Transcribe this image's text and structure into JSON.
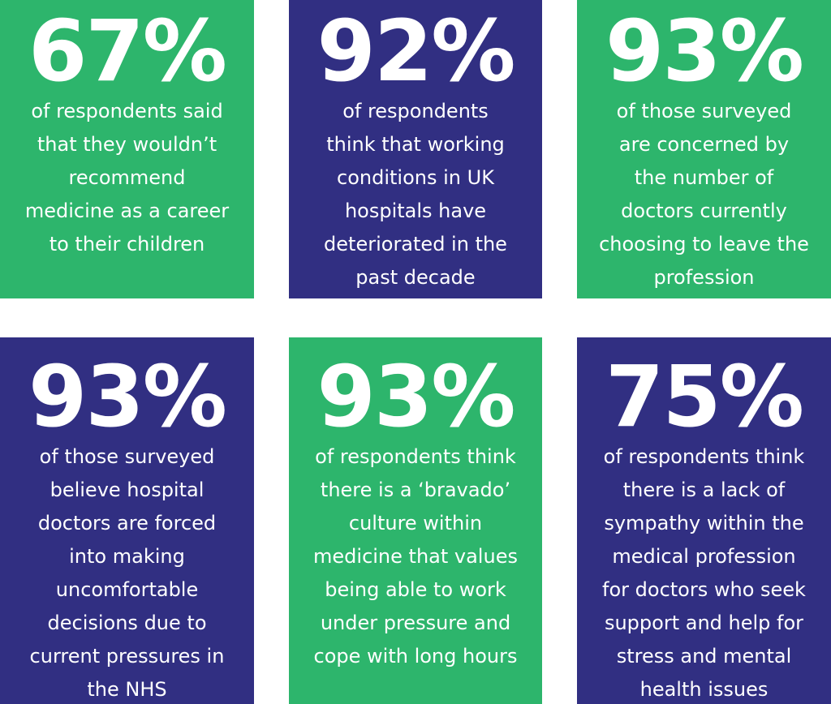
{
  "stats": [
    {
      "percent": "67%",
      "text": "of respondents said\nthat they wouldn’t\nrecommend\nmedicine as a career\nto their children",
      "color": "#2db56c"
    },
    {
      "percent": "92%",
      "text": "of respondents\nthink that working\nconditions in UK\nhospitals have\ndeteriorated in the\npast decade",
      "color": "#312f82"
    },
    {
      "percent": "93%",
      "text": "of those surveyed\nare concerned by\nthe number of\ndoctors currently\nchoosing to leave the\nprofession",
      "color": "#2db56c"
    },
    {
      "percent": "93%",
      "text": "of those surveyed\nbelieve hospital\ndoctors are forced\ninto making\nuncomfortable\ndecisions due to\ncurrent pressures in\nthe NHS",
      "color": "#312f82"
    },
    {
      "percent": "93%",
      "text": "of respondents think\nthere is a ‘bravado’\nculture within\nmedicine that values\nbeing able to work\nunder pressure and\ncope with long hours",
      "color": "#2db56c"
    },
    {
      "percent": "75%",
      "text": "of respondents think\nthere is a lack of\nsympathy within the\nmedical profession\nfor doctors who seek\nsupport and help for\nstress and mental\nhealth issues",
      "color": "#312f82"
    }
  ]
}
